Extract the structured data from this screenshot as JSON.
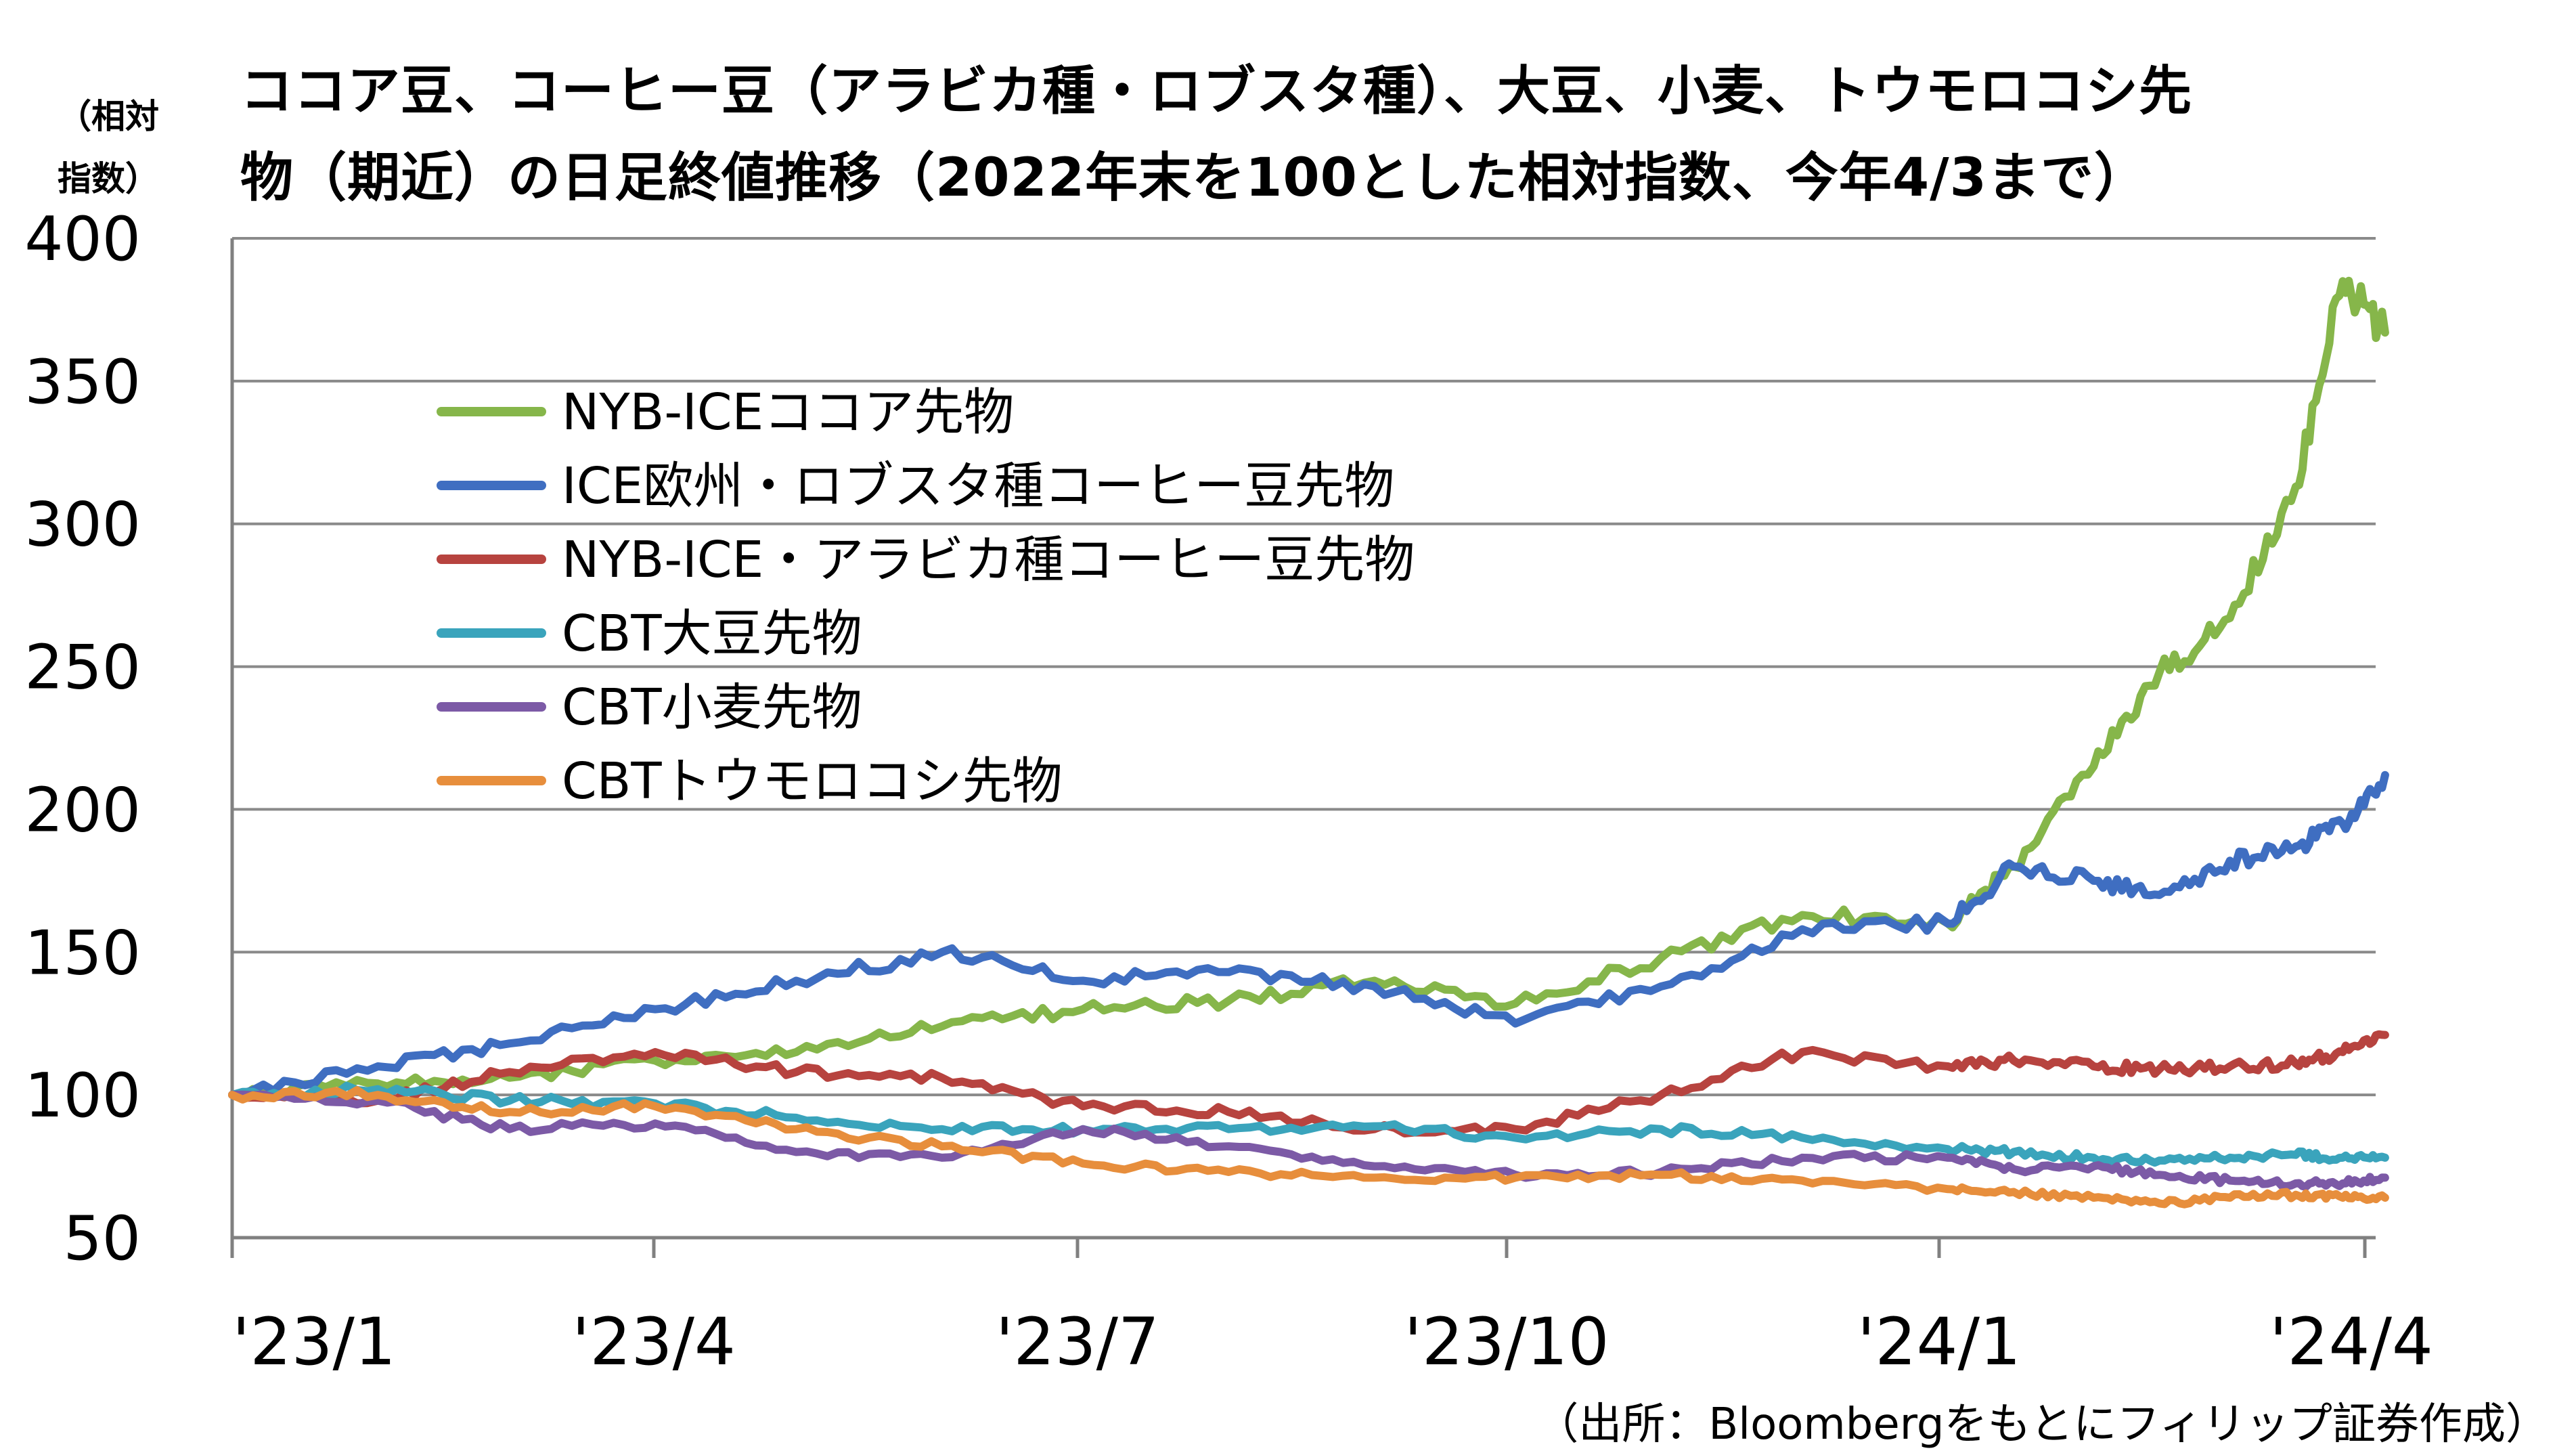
{
  "chart_data": {
    "type": "line",
    "title_line1": "ココア豆、コーヒー豆（アラビカ種・ロブスタ種）、大豆、小麦、トウモロコシ先",
    "title_line2": "物（期近）の日足終値推移（2022年末を100とした相対指数、今年4/3まで）",
    "ylabel_line1": "（相対",
    "ylabel_line2": "指数）",
    "source": "（出所：Bloombergをもとにフィリップ証券作成）",
    "xlabel": "",
    "ylim": [
      50,
      400
    ],
    "yticks": [
      50,
      100,
      150,
      200,
      250,
      300,
      350,
      400
    ],
    "x_range": [
      "2023-01-01",
      "2024-04-01"
    ],
    "xtick_labels": [
      "'23/1",
      "'23/4",
      "'23/7",
      "'23/10",
      "'24/1",
      "'24/4"
    ],
    "grid": "horizontal",
    "legend_position": "upper-left",
    "series": [
      {
        "name": "NYB-ICEココア先物",
        "color": "#86b64a",
        "x": [
          "2023-01-01",
          "2023-02-01",
          "2023-03-01",
          "2023-04-01",
          "2023-05-01",
          "2023-06-01",
          "2023-07-01",
          "2023-08-01",
          "2023-09-01",
          "2023-10-01",
          "2023-11-01",
          "2023-12-01",
          "2024-01-01",
          "2024-01-15",
          "2024-02-01",
          "2024-02-15",
          "2024-03-01",
          "2024-03-15",
          "2024-03-25",
          "2024-04-03"
        ],
        "values": [
          100,
          104,
          106,
          112,
          115,
          124,
          130,
          133,
          140,
          132,
          148,
          163,
          160,
          180,
          215,
          248,
          267,
          313,
          385,
          367
        ]
      },
      {
        "name": "ICE欧州・ロブスタ種コーヒー豆先物",
        "color": "#3f6ec1",
        "x": [
          "2023-01-01",
          "2023-02-01",
          "2023-03-01",
          "2023-04-01",
          "2023-05-01",
          "2023-06-01",
          "2023-07-01",
          "2023-08-01",
          "2023-09-01",
          "2023-10-01",
          "2023-11-01",
          "2023-12-01",
          "2024-01-01",
          "2024-01-15",
          "2024-02-01",
          "2024-02-15",
          "2024-03-01",
          "2024-03-15",
          "2024-03-25",
          "2024-04-03"
        ],
        "values": [
          100,
          110,
          118,
          130,
          140,
          150,
          140,
          143,
          138,
          125,
          138,
          158,
          160,
          180,
          175,
          170,
          182,
          187,
          195,
          212
        ]
      },
      {
        "name": "NYB-ICE・アラビカ種コーヒー豆先物",
        "color": "#b7433f",
        "x": [
          "2023-01-01",
          "2023-02-01",
          "2023-03-01",
          "2023-04-01",
          "2023-05-01",
          "2023-06-01",
          "2023-07-01",
          "2023-08-01",
          "2023-09-01",
          "2023-10-01",
          "2023-11-01",
          "2023-12-01",
          "2024-01-01",
          "2024-01-15",
          "2024-02-01",
          "2024-02-15",
          "2024-03-01",
          "2024-03-15",
          "2024-03-25",
          "2024-04-03"
        ],
        "values": [
          100,
          98,
          108,
          115,
          108,
          106,
          96,
          94,
          88,
          88,
          100,
          115,
          110,
          112,
          110,
          109,
          110,
          111,
          115,
          121
        ]
      },
      {
        "name": "CBT大豆先物",
        "color": "#3aa4bc",
        "x": [
          "2023-01-01",
          "2023-02-01",
          "2023-03-01",
          "2023-04-01",
          "2023-05-01",
          "2023-06-01",
          "2023-07-01",
          "2023-08-01",
          "2023-09-01",
          "2023-10-01",
          "2023-11-01",
          "2023-12-01",
          "2024-01-01",
          "2024-01-15",
          "2024-02-01",
          "2024-02-15",
          "2024-03-01",
          "2024-03-15",
          "2024-03-25",
          "2024-04-03"
        ],
        "values": [
          100,
          102,
          98,
          97,
          92,
          88,
          88,
          88,
          89,
          85,
          88,
          85,
          81,
          80,
          78,
          77,
          78,
          79,
          78,
          78
        ]
      },
      {
        "name": "CBT小麦先物",
        "color": "#7c5aa6",
        "x": [
          "2023-01-01",
          "2023-02-01",
          "2023-03-01",
          "2023-04-01",
          "2023-05-01",
          "2023-06-01",
          "2023-07-01",
          "2023-08-01",
          "2023-09-01",
          "2023-10-01",
          "2023-11-01",
          "2023-12-01",
          "2024-01-01",
          "2024-01-15",
          "2024-02-01",
          "2024-02-15",
          "2024-03-01",
          "2024-03-15",
          "2024-03-25",
          "2024-04-03"
        ],
        "values": [
          100,
          98,
          88,
          90,
          80,
          78,
          88,
          82,
          75,
          72,
          73,
          78,
          78,
          74,
          75,
          72,
          70,
          69,
          69,
          71
        ]
      },
      {
        "name": "CBTトウモロコシ先物",
        "color": "#e78e3c",
        "x": [
          "2023-01-01",
          "2023-02-01",
          "2023-03-01",
          "2023-04-01",
          "2023-05-01",
          "2023-06-01",
          "2023-07-01",
          "2023-08-01",
          "2023-09-01",
          "2023-10-01",
          "2023-11-01",
          "2023-12-01",
          "2024-01-01",
          "2024-01-15",
          "2024-02-01",
          "2024-02-15",
          "2024-03-01",
          "2024-03-15",
          "2024-03-25",
          "2024-04-03"
        ],
        "values": [
          100,
          100,
          94,
          96,
          88,
          82,
          76,
          73,
          71,
          71,
          72,
          70,
          67,
          66,
          64,
          62,
          64,
          65,
          64,
          64
        ]
      }
    ]
  }
}
